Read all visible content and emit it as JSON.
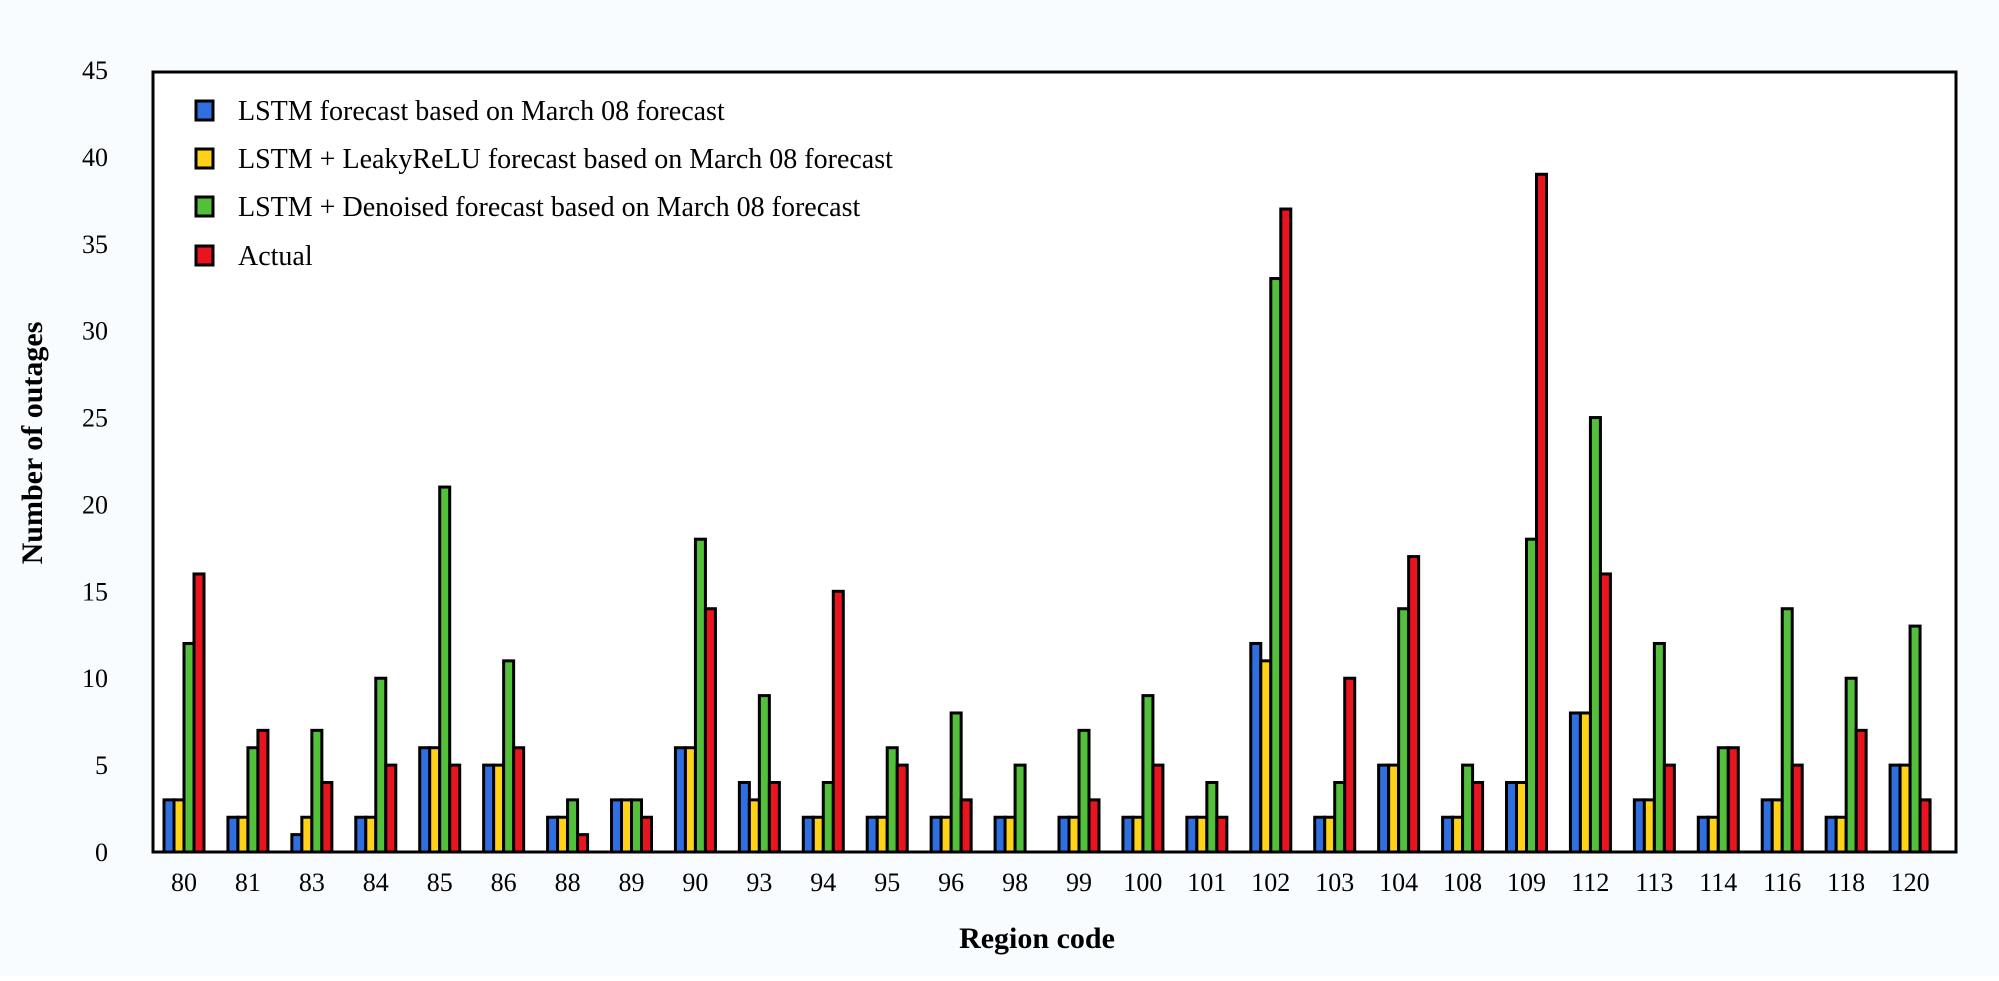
{
  "chart_data": {
    "type": "bar",
    "xlabel": "Region code",
    "ylabel": "Number of outages",
    "ylim": [
      0,
      45
    ],
    "yticks": [
      0,
      5,
      10,
      15,
      20,
      25,
      30,
      35,
      40,
      45
    ],
    "grid": false,
    "legend_position": "top-left",
    "categories": [
      "80",
      "81",
      "83",
      "84",
      "85",
      "86",
      "88",
      "89",
      "90",
      "93",
      "94",
      "95",
      "96",
      "98",
      "99",
      "100",
      "101",
      "102",
      "103",
      "104",
      "108",
      "109",
      "112",
      "113",
      "114",
      "116",
      "118",
      "120"
    ],
    "series": [
      {
        "name": "LSTM forecast based on March 08 forecast",
        "color": "#2f6fe0",
        "values": [
          3,
          2,
          1,
          2,
          6,
          5,
          2,
          3,
          6,
          4,
          2,
          2,
          2,
          2,
          2,
          2,
          2,
          12,
          2,
          5,
          2,
          4,
          8,
          3,
          2,
          3,
          2,
          5
        ]
      },
      {
        "name": "LSTM + LeakyReLU forecast based on March 08 forecast",
        "color": "#ffd21a",
        "values": [
          3,
          2,
          2,
          2,
          6,
          5,
          2,
          3,
          6,
          3,
          2,
          2,
          2,
          2,
          2,
          2,
          2,
          11,
          2,
          5,
          2,
          4,
          8,
          3,
          2,
          3,
          2,
          5
        ]
      },
      {
        "name": "LSTM + Denoised forecast based on March 08 forecast",
        "color": "#52c03a",
        "values": [
          12,
          6,
          7,
          10,
          21,
          11,
          3,
          3,
          18,
          9,
          4,
          6,
          8,
          5,
          7,
          9,
          4,
          33,
          4,
          14,
          5,
          18,
          25,
          12,
          6,
          14,
          10,
          13
        ]
      },
      {
        "name": "Actual",
        "color": "#e8141e",
        "values": [
          16,
          7,
          4,
          5,
          5,
          6,
          1,
          2,
          14,
          4,
          15,
          5,
          3,
          0,
          3,
          5,
          2,
          37,
          10,
          17,
          4,
          39,
          16,
          5,
          6,
          5,
          7,
          3
        ]
      }
    ]
  }
}
